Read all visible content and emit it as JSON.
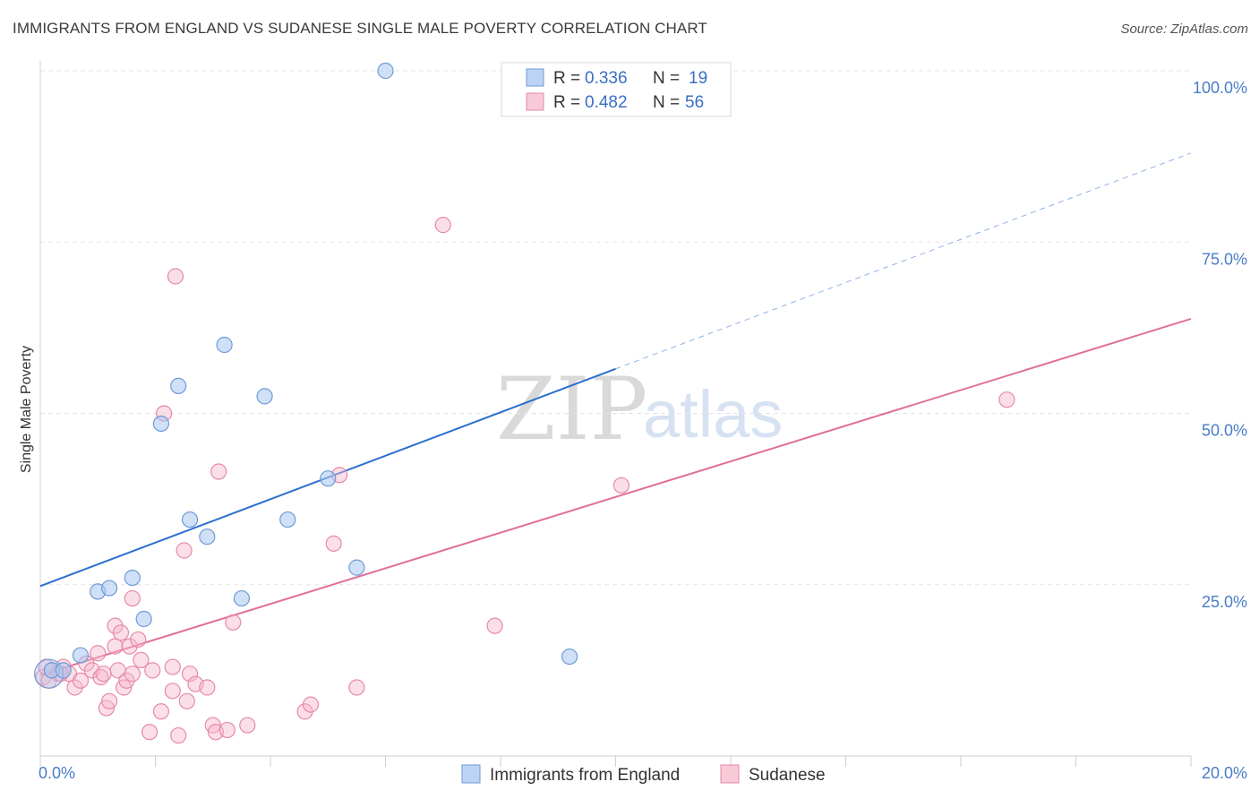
{
  "title": "IMMIGRANTS FROM ENGLAND VS SUDANESE SINGLE MALE POVERTY CORRELATION CHART",
  "source": "Source: ZipAtlas.com",
  "watermark": {
    "zip": "ZIP",
    "atlas": "atlas"
  },
  "legend": {
    "england": {
      "r_label": "R =",
      "r_value": "0.336",
      "n_label": "N =",
      "n_value": "19"
    },
    "sudanese": {
      "r_label": "R =",
      "r_value": "0.482",
      "n_label": "N =",
      "n_value": "56"
    }
  },
  "bottom_legend": {
    "england": "Immigrants from England",
    "sudanese": "Sudanese"
  },
  "colors": {
    "england_fill": "#a9c8f0",
    "england_stroke": "#6f9ad6",
    "england_line": "#2a6fcf",
    "sudanese_fill": "#f6b8cb",
    "sudanese_stroke": "#e68aa8",
    "sudanese_line": "#e0709a",
    "grid": "#e3e3e3",
    "tick_text": "#4a7cc7"
  },
  "chart_data": {
    "type": "scatter",
    "title": "IMMIGRANTS FROM ENGLAND VS SUDANESE SINGLE MALE POVERTY CORRELATION CHART",
    "xlabel": "",
    "ylabel": "Single Male Poverty",
    "xlim": [
      0,
      20
    ],
    "ylim": [
      0,
      100
    ],
    "x_tick_labels": [
      "0.0%",
      "20.0%"
    ],
    "y_tick_labels": [
      "25.0%",
      "50.0%",
      "75.0%",
      "100.0%"
    ],
    "y_ticks": [
      25,
      50,
      75,
      100
    ],
    "grid": true,
    "legend_position": "top-center",
    "series": [
      {
        "name": "Immigrants from England",
        "points": [
          [
            0.2,
            12.5
          ],
          [
            0.4,
            12.5
          ],
          [
            0.7,
            14.7
          ],
          [
            1.0,
            24.0
          ],
          [
            1.2,
            24.5
          ],
          [
            1.6,
            26.0
          ],
          [
            1.8,
            20.0
          ],
          [
            2.1,
            48.5
          ],
          [
            2.4,
            54.0
          ],
          [
            2.6,
            34.5
          ],
          [
            2.9,
            32.0
          ],
          [
            3.2,
            60.0
          ],
          [
            3.5,
            23.0
          ],
          [
            3.9,
            52.5
          ],
          [
            4.3,
            34.5
          ],
          [
            5.0,
            40.5
          ],
          [
            5.5,
            27.5
          ],
          [
            6.0,
            100.0
          ],
          [
            9.2,
            14.5
          ]
        ],
        "trend": {
          "x": [
            0,
            10
          ],
          "y": [
            24.8,
            56.5
          ],
          "dashed_extension": {
            "x": [
              10,
              20
            ],
            "y": [
              56.5,
              88.0
            ]
          }
        }
      },
      {
        "name": "Sudanese",
        "points": [
          [
            0.05,
            11.5
          ],
          [
            0.1,
            13.0
          ],
          [
            0.2,
            12.5
          ],
          [
            0.3,
            12.0
          ],
          [
            0.4,
            13.0
          ],
          [
            0.5,
            12.0
          ],
          [
            0.6,
            10.0
          ],
          [
            0.7,
            11.0
          ],
          [
            0.8,
            13.5
          ],
          [
            0.9,
            12.5
          ],
          [
            1.0,
            15.0
          ],
          [
            1.05,
            11.5
          ],
          [
            1.1,
            12.0
          ],
          [
            1.15,
            7.0
          ],
          [
            1.2,
            8.0
          ],
          [
            1.3,
            19.0
          ],
          [
            1.3,
            16.0
          ],
          [
            1.35,
            12.5
          ],
          [
            1.4,
            18.0
          ],
          [
            1.45,
            10.0
          ],
          [
            1.5,
            11.0
          ],
          [
            1.55,
            16.0
          ],
          [
            1.6,
            23.0
          ],
          [
            1.6,
            12.0
          ],
          [
            1.7,
            17.0
          ],
          [
            1.75,
            14.0
          ],
          [
            1.9,
            3.5
          ],
          [
            1.95,
            12.5
          ],
          [
            2.1,
            6.5
          ],
          [
            2.15,
            50.0
          ],
          [
            2.3,
            13.0
          ],
          [
            2.3,
            9.5
          ],
          [
            2.35,
            70.0
          ],
          [
            2.4,
            3.0
          ],
          [
            2.5,
            30.0
          ],
          [
            2.55,
            8.0
          ],
          [
            2.6,
            12.0
          ],
          [
            2.7,
            10.5
          ],
          [
            2.9,
            10.0
          ],
          [
            3.0,
            4.5
          ],
          [
            3.05,
            3.5
          ],
          [
            3.1,
            41.5
          ],
          [
            3.25,
            3.8
          ],
          [
            3.35,
            19.5
          ],
          [
            3.6,
            4.5
          ],
          [
            4.6,
            6.5
          ],
          [
            4.7,
            7.5
          ],
          [
            5.2,
            41.0
          ],
          [
            5.1,
            31.0
          ],
          [
            5.5,
            10.0
          ],
          [
            7.0,
            77.5
          ],
          [
            7.9,
            19.0
          ],
          [
            10.1,
            39.5
          ],
          [
            16.8,
            52.0
          ],
          [
            0.15,
            11.0
          ],
          [
            0.35,
            12.0
          ]
        ],
        "trend": {
          "x": [
            0,
            20
          ],
          "y": [
            11.8,
            63.8
          ]
        }
      }
    ]
  }
}
